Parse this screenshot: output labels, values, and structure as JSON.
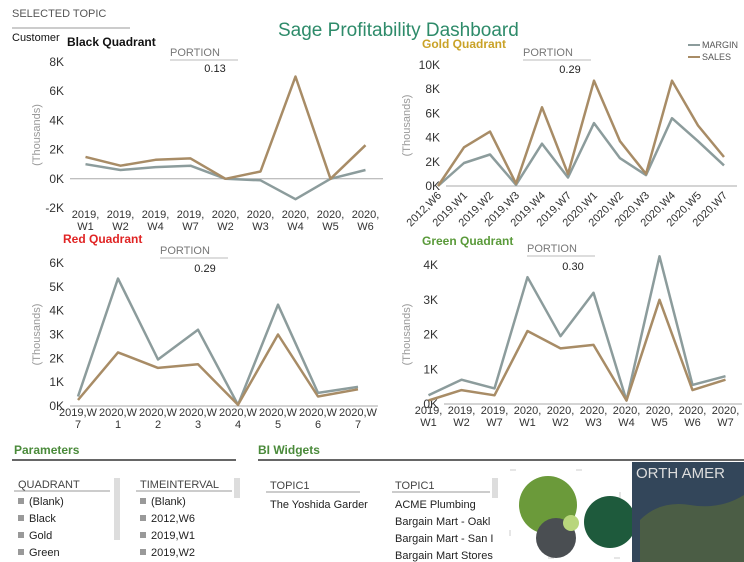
{
  "header": {
    "selected_topic": "SELECTED TOPIC",
    "customer": "Customer",
    "title": "Sage Profitability Dashboard"
  },
  "chart_data": [
    {
      "type": "line",
      "title": "Black Quadrant",
      "title_color": "#111111",
      "subtitle": "PORTION",
      "annotation": "0.13",
      "y_label": "(Thousands)",
      "categories": [
        "2019, W1",
        "2019, W2",
        "2019, W4",
        "2019, W7",
        "2020, W2",
        "2020, W3",
        "2020, W4",
        "2020, W5",
        "2020, W6"
      ],
      "series": [
        {
          "color": "#8c9c9c",
          "values": [
            1000,
            600,
            800,
            900,
            0,
            -100,
            -1400,
            0,
            600
          ]
        },
        {
          "color": "#a88c66",
          "values": [
            1500,
            900,
            1300,
            1400,
            0,
            500,
            7000,
            0,
            2300
          ]
        }
      ],
      "ylim": [
        -2000,
        8000
      ],
      "yticks": [
        {
          "value": -2000,
          "label": "-2K"
        },
        {
          "value": 0,
          "label": "0K"
        },
        {
          "value": 2000,
          "label": "2K"
        },
        {
          "value": 4000,
          "label": "4K"
        },
        {
          "value": 6000,
          "label": "6K"
        },
        {
          "value": 8000,
          "label": "8K"
        }
      ]
    },
    {
      "type": "line",
      "title": "Gold Quadrant",
      "title_color": "#c9a227",
      "subtitle": "PORTION",
      "annotation": "0.29",
      "y_label": "(Thousands)",
      "rotated_x_labels": true,
      "legend": "top-right",
      "categories": [
        "2012,W6",
        "2019,W1",
        "2019,W2",
        "2019,W3",
        "2019,W4",
        "2019,W7",
        "2020,W1",
        "2020,W2",
        "2020,W3",
        "2020,W4",
        "2020,W5",
        "2020,W7"
      ],
      "series": [
        {
          "name": "MARGIN",
          "color": "#8c9c9c",
          "values": [
            0,
            1900,
            2600,
            100,
            3500,
            700,
            5200,
            2300,
            900,
            5600,
            3700,
            1700
          ]
        },
        {
          "name": "SALES",
          "color": "#a88c66",
          "values": [
            0,
            3200,
            4500,
            200,
            6500,
            1000,
            8700,
            3700,
            1000,
            8700,
            5000,
            2400
          ]
        }
      ],
      "ylim": [
        0,
        10000
      ],
      "yticks": [
        {
          "value": 0,
          "label": "0K"
        },
        {
          "value": 2000,
          "label": "2K"
        },
        {
          "value": 4000,
          "label": "4K"
        },
        {
          "value": 6000,
          "label": "6K"
        },
        {
          "value": 8000,
          "label": "8K"
        },
        {
          "value": 10000,
          "label": "10K"
        }
      ]
    },
    {
      "type": "line",
      "title": "Red Quadrant",
      "title_color": "#e02424",
      "subtitle": "PORTION",
      "annotation": "0.29",
      "y_label": "(Thousands)",
      "categories": [
        "2019,W7",
        "2020,W1",
        "2020,W2",
        "2020,W3",
        "2020,W4",
        "2020,W5",
        "2020,W6",
        "2020,W7"
      ],
      "series": [
        {
          "color": "#8c9c9c",
          "values": [
            400,
            5350,
            1950,
            3200,
            50,
            4250,
            550,
            800
          ]
        },
        {
          "color": "#a88c66",
          "values": [
            250,
            2250,
            1600,
            1750,
            50,
            3000,
            400,
            700
          ]
        }
      ],
      "ylim": [
        0,
        6000
      ],
      "yticks": [
        {
          "value": 0,
          "label": "0K"
        },
        {
          "value": 1000,
          "label": "1K"
        },
        {
          "value": 2000,
          "label": "2K"
        },
        {
          "value": 3000,
          "label": "3K"
        },
        {
          "value": 4000,
          "label": "4K"
        },
        {
          "value": 5000,
          "label": "5K"
        },
        {
          "value": 6000,
          "label": "6K"
        }
      ]
    },
    {
      "type": "line",
      "title": "Green Quadrant",
      "title_color": "#5a9a3a",
      "subtitle": "PORTION",
      "annotation": "0.30",
      "y_label": "(Thousands)",
      "categories": [
        "2019, W1",
        "2019, W2",
        "2019, W7",
        "2020, W1",
        "2020, W2",
        "2020, W3",
        "2020, W4",
        "2020, W5",
        "2020, W6",
        "2020, W7"
      ],
      "series": [
        {
          "color": "#8c9c9c",
          "values": [
            250,
            700,
            450,
            3650,
            1950,
            3200,
            100,
            4250,
            550,
            800
          ]
        },
        {
          "color": "#a88c66",
          "values": [
            100,
            400,
            250,
            2100,
            1600,
            1700,
            100,
            3000,
            400,
            700
          ]
        }
      ],
      "ylim": [
        0,
        4000
      ],
      "yticks": [
        {
          "value": 0,
          "label": "0K"
        },
        {
          "value": 1000,
          "label": "1K"
        },
        {
          "value": 2000,
          "label": "2K"
        },
        {
          "value": 3000,
          "label": "3K"
        },
        {
          "value": 4000,
          "label": "4K"
        }
      ]
    }
  ],
  "parameters": {
    "title": "Parameters",
    "quadrant": {
      "header": "QUADRANT",
      "items": [
        "(Blank)",
        "Black",
        "Gold",
        "Green"
      ]
    },
    "timeinterval": {
      "header": "TIMEINTERVAL",
      "items": [
        "(Blank)",
        "2012,W6",
        "2019,W1",
        "2019,W2"
      ]
    }
  },
  "bi_widgets": {
    "title": "BI Widgets",
    "topic_a": {
      "header": "TOPIC1",
      "items": [
        "The Yoshida Garder"
      ]
    },
    "topic_b": {
      "header": "TOPIC1",
      "items": [
        "ACME Plumbing",
        "Bargain Mart - Oakl",
        "Bargain Mart - San I",
        "Bargain Mart Stores"
      ]
    },
    "map_label": "ORTH AMER"
  }
}
